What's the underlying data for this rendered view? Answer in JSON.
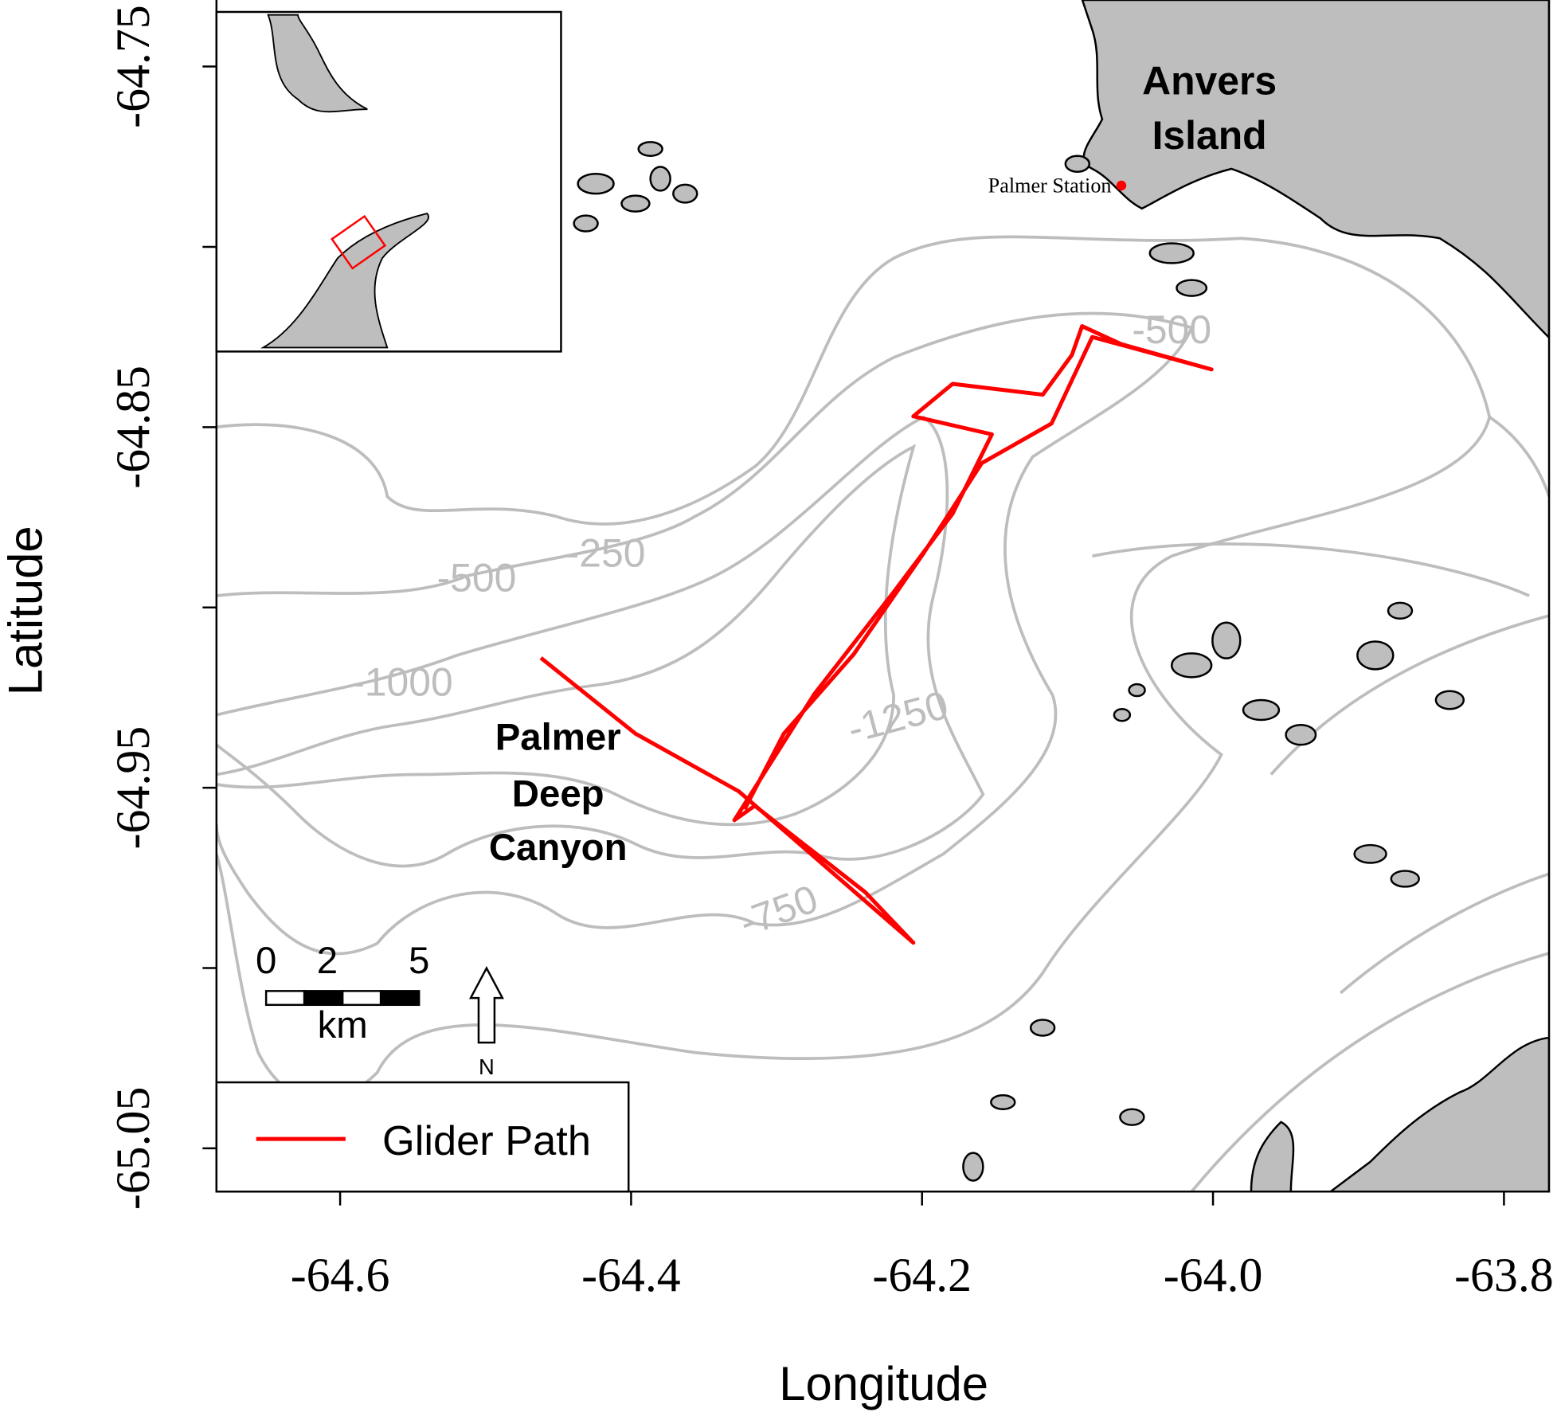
{
  "chart_data": {
    "type": "map",
    "xlabel": "Longitude",
    "ylabel": "Latitude",
    "xlim": [
      -64.685,
      -63.769
    ],
    "ylim": [
      -65.062,
      -64.731
    ],
    "xticks": [
      -64.6,
      -64.4,
      -64.2,
      {
        "value": -64,
        "label": "-64.0"
      },
      -63.8
    ],
    "yticks": [
      -64.75,
      -64.85,
      -64.95,
      -65.05
    ],
    "yminor_ticks": [
      -64.8,
      -64.9,
      -65.0
    ],
    "series": [
      {
        "name": "Glider Path",
        "color": "#ff0000",
        "x": [
          -64.462,
          -64.397,
          -64.326,
          -64.206,
          -64.239,
          -64.315,
          -64.329,
          -64.274,
          -64.22,
          -64.179,
          -64.152,
          -64.206,
          -64.179,
          -64.117,
          -64.097,
          -64.09,
          -64.063,
          -64.001,
          -64.083,
          -64.111,
          -64.159,
          -64.199,
          -64.247,
          -64.295,
          -64.322
        ],
        "y": [
          -64.914,
          -64.935,
          -64.951,
          -64.993,
          -64.979,
          -64.955,
          -64.959,
          -64.924,
          -64.896,
          -64.874,
          -64.852,
          -64.847,
          -64.838,
          -64.841,
          -64.83,
          -64.822,
          -64.827,
          -64.834,
          -64.825,
          -64.849,
          -64.86,
          -64.885,
          -64.913,
          -64.935,
          -64.956
        ]
      }
    ],
    "points": [
      {
        "label": "Palmer Station",
        "lon": -64.063,
        "lat": -64.783,
        "color": "#ff0000"
      }
    ],
    "place_labels": [
      [
        "Anvers",
        "Island"
      ],
      [
        "Palmer",
        "Deep",
        "Canyon"
      ]
    ],
    "contour_labels": [
      -250,
      -500,
      -1000,
      -1250,
      -750,
      -500
    ],
    "scale_bar": {
      "ticks": [
        0,
        2,
        5
      ],
      "unit": "km"
    },
    "north_label": "N"
  }
}
